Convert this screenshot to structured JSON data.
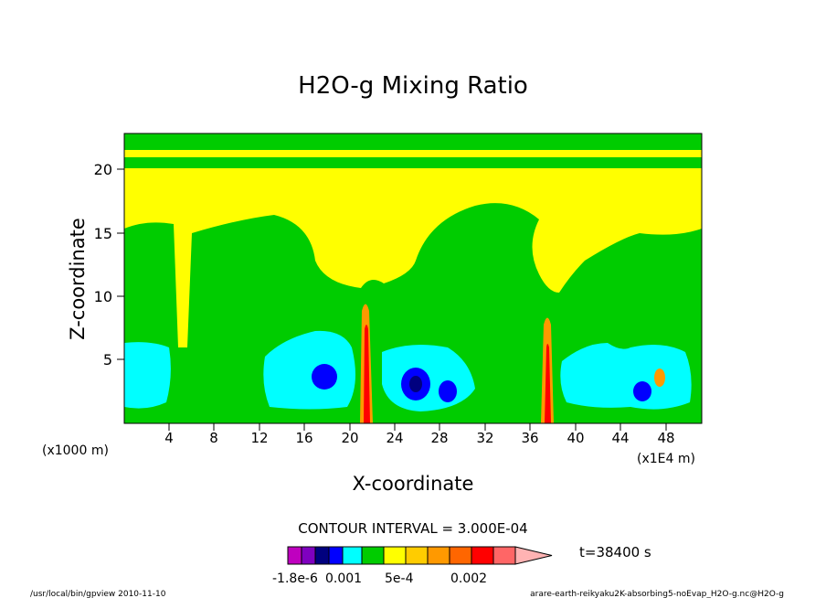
{
  "chart_data": {
    "type": "heatmap",
    "title": "H2O-g Mixing Ratio",
    "xlabel": "X-coordinate",
    "ylabel": "Z-coordinate",
    "x_unit_left": "(x1000 m)",
    "x_unit_right": "(x1E4 m)",
    "xlim": [
      0,
      51.6
    ],
    "ylim": [
      0,
      22.5
    ],
    "x_ticks": [
      "4",
      "8",
      "12",
      "16",
      "20",
      "24",
      "28",
      "32",
      "36",
      "40",
      "44",
      "48"
    ],
    "y_ticks": [
      "5",
      "10",
      "15",
      "20"
    ],
    "contour_interval_text": "CONTOUR INTERVAL = 3.000E-04",
    "time_label": "t=38400 s",
    "colorbar_labels": [
      "-1.8e-6",
      "0.001",
      "5e-4",
      "0.002"
    ],
    "colorbar_colors": [
      "#bf00bf",
      "#7f00bf",
      "#00007f",
      "#0000ff",
      "#00ffff",
      "#00cc00",
      "#ffff00",
      "#ffcc00",
      "#ff9900",
      "#ff6600",
      "#ff0000",
      "#ff6666",
      "#ffb3b3"
    ],
    "field_colors": {
      "dry_upper": "#ffff00",
      "moist_mid": "#00cc00",
      "low_cyan": "#00ffff",
      "low_blue": "#0000ff",
      "core_dark": "#00007f",
      "plume_orange": "#ff9900",
      "plume_red": "#ff0000"
    }
  },
  "footer": {
    "left": "/usr/local/bin/gpview  2010-11-10",
    "right": "arare-earth-reikyaku2K-absorbing5-noEvap_H2O-g.nc@H2O-g"
  }
}
